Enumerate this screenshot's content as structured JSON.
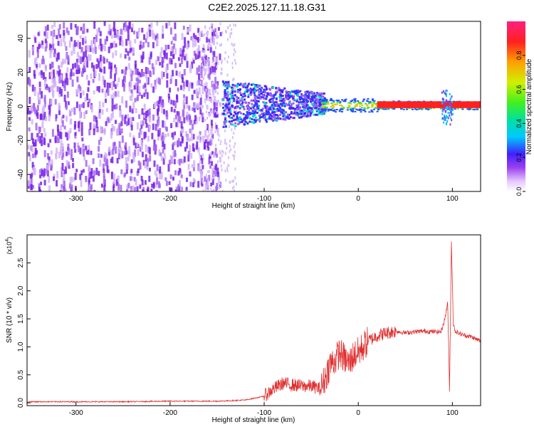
{
  "title": "C2E2.2025.127.11.18.G31",
  "chart_data": [
    {
      "type": "heatmap",
      "xlabel": "Height of straight line (km)",
      "ylabel": "Frequency (Hz)",
      "xlim": [
        -352,
        130
      ],
      "ylim": [
        -50,
        50
      ],
      "x_ticks": [
        "-300",
        "-200",
        "-100",
        "0",
        "100"
      ],
      "y_ticks": [
        "-40",
        "-20",
        "0",
        "20",
        "40"
      ],
      "colorbar": {
        "label": "Normalized spectral amplitude",
        "range": [
          0,
          1
        ],
        "ticks": [
          "0.0",
          "0.2",
          "0.4",
          "0.6",
          "0.8"
        ]
      },
      "regions": [
        {
          "x_range": [
            -352,
            -140
          ],
          "description_value": "noise, amplitude ~0.05-0.15 across full frequency range"
        },
        {
          "x_range": [
            -140,
            -40
          ],
          "freq_center": 0,
          "freq_spread": 12,
          "amplitude": 0.3
        },
        {
          "x_range": [
            -40,
            130
          ],
          "freq_center": 1,
          "freq_spread": 3,
          "amplitude": 0.95
        }
      ]
    },
    {
      "type": "line",
      "xlabel": "Height of straight line (km)",
      "ylabel": "SNR (10 * v/v)",
      "yscale_label": "(x10",
      "yscale_exp": "4",
      "xlim": [
        -352,
        130
      ],
      "ylim": [
        -0.05,
        3.0
      ],
      "x_ticks": [
        "-300",
        "-200",
        "-100",
        "0",
        "100"
      ],
      "y_ticks": [
        "0.0",
        "0.5",
        "1.0",
        "1.5",
        "2.0",
        "2.5"
      ],
      "series": [
        {
          "color": "#e03030",
          "x": [
            -352,
            -300,
            -250,
            -200,
            -150,
            -120,
            -100,
            -90,
            -80,
            -70,
            -60,
            -50,
            -40,
            -35,
            -30,
            -25,
            -20,
            -15,
            -10,
            -5,
            0,
            5,
            10,
            20,
            30,
            40,
            50,
            60,
            70,
            80,
            88,
            92,
            95,
            97,
            99,
            101,
            103,
            110,
            120,
            130
          ],
          "y": [
            0.02,
            0.02,
            0.02,
            0.03,
            0.03,
            0.05,
            0.12,
            0.25,
            0.35,
            0.32,
            0.3,
            0.3,
            0.25,
            0.45,
            0.7,
            0.75,
            0.9,
            0.8,
            0.7,
            0.85,
            0.9,
            1.0,
            1.1,
            1.2,
            1.25,
            1.28,
            1.25,
            1.27,
            1.28,
            1.27,
            1.27,
            1.5,
            1.8,
            0.2,
            2.9,
            1.4,
            1.28,
            1.22,
            1.18,
            1.1
          ]
        }
      ]
    }
  ]
}
